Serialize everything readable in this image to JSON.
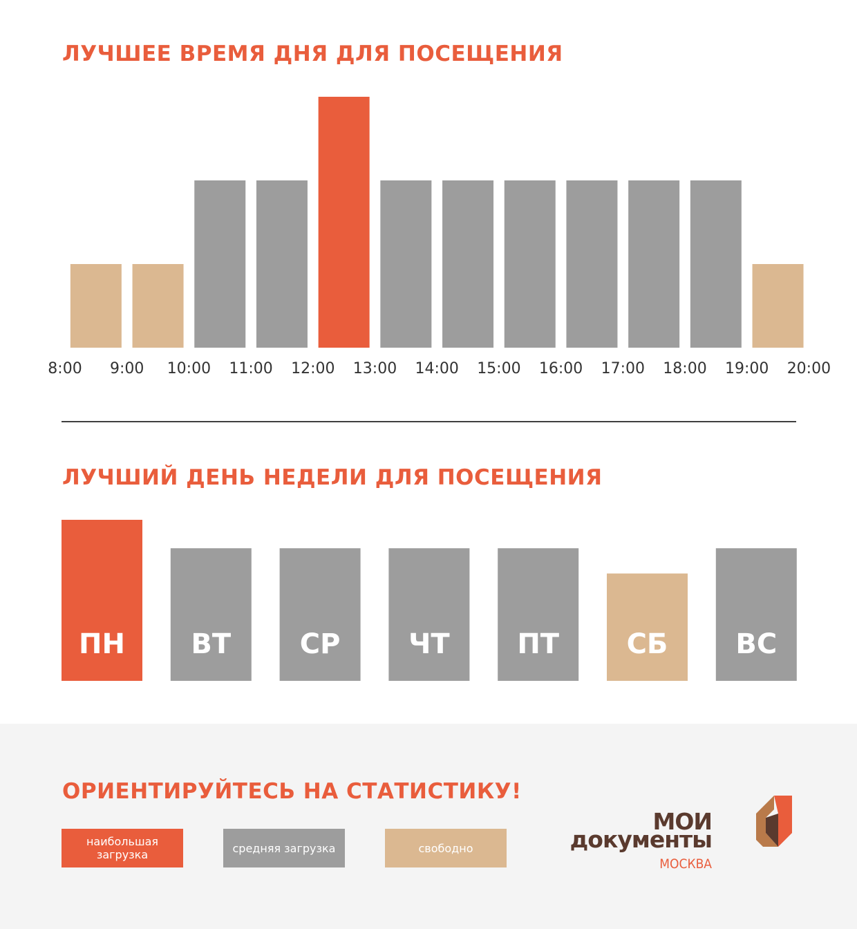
{
  "titles": {
    "time": "ЛУЧШЕЕ ВРЕМЯ ДНЯ ДЛЯ ПОСЕЩЕНИЯ",
    "week": "ЛУЧШИЙ ДЕНЬ НЕДЕЛИ ДЛЯ ПОСЕЩЕНИЯ",
    "footer": "ОРИЕНТИРУЙТЕСЬ НА СТАТИСТИКУ!"
  },
  "colors": {
    "accent": "#e95d3c",
    "medium": "#9d9d9d",
    "free": "#dbb891",
    "text": "#333333",
    "brand_brown": "#5a3a2e"
  },
  "legend": {
    "high": "наибольшая загрузка",
    "medium": "средняя загрузка",
    "free": "свободно"
  },
  "logo": {
    "line1": "МОИ",
    "line2": "документы",
    "city": "МОСКВА"
  },
  "chart_data": [
    {
      "type": "bar",
      "title": "ЛУЧШЕЕ ВРЕМЯ ДНЯ ДЛЯ ПОСЕЩЕНИЯ",
      "x_ticks": [
        "8:00",
        "9:00",
        "10:00",
        "11:00",
        "12:00",
        "13:00",
        "14:00",
        "15:00",
        "16:00",
        "17:00",
        "18:00",
        "19:00",
        "20:00"
      ],
      "values": [
        1,
        1,
        2,
        2,
        3,
        2,
        2,
        2,
        2,
        2,
        2,
        1
      ],
      "levels": [
        "free",
        "free",
        "medium",
        "medium",
        "high",
        "medium",
        "medium",
        "medium",
        "medium",
        "medium",
        "medium",
        "free"
      ],
      "ylim": [
        0,
        3
      ]
    },
    {
      "type": "bar",
      "title": "ЛУЧШИЙ ДЕНЬ НЕДЕЛИ ДЛЯ ПОСЕЩЕНИЯ",
      "categories": [
        "ПН",
        "ВТ",
        "СР",
        "ЧТ",
        "ПТ",
        "СБ",
        "ВС"
      ],
      "values": [
        3,
        2.47,
        2.47,
        2.47,
        2.47,
        2,
        2.47
      ],
      "levels": [
        "high",
        "medium",
        "medium",
        "medium",
        "medium",
        "free",
        "medium"
      ],
      "ylim": [
        0,
        3
      ]
    }
  ]
}
